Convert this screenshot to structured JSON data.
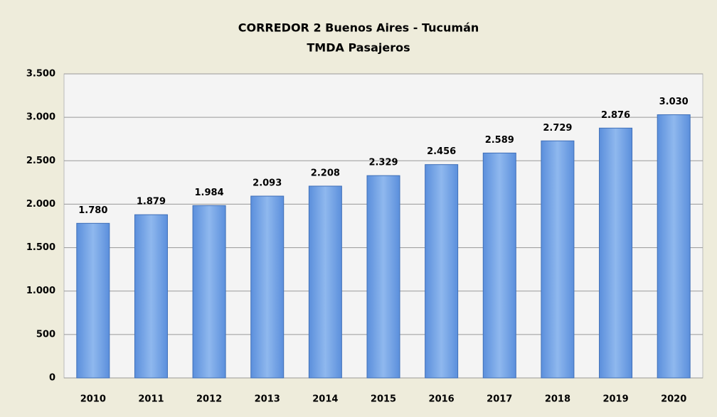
{
  "chart_data": {
    "type": "bar",
    "title": "CORREDOR 2 Buenos Aires - Tucumán",
    "subtitle": "TMDA Pasajeros",
    "categories": [
      "2010",
      "2011",
      "2012",
      "2013",
      "2014",
      "2015",
      "2016",
      "2017",
      "2018",
      "2019",
      "2020"
    ],
    "values": [
      1780,
      1879,
      1984,
      2093,
      2208,
      2329,
      2456,
      2589,
      2729,
      2876,
      3030
    ],
    "value_labels": [
      "1.780",
      "1.879",
      "1.984",
      "2.093",
      "2.208",
      "2.329",
      "2.456",
      "2.589",
      "2.729",
      "2.876",
      "3.030"
    ],
    "color": "#5b8fdc",
    "ylim": [
      0,
      3500
    ],
    "yticks": [
      0,
      500,
      {
        "value": 1000,
        "label": "1.000"
      },
      {
        "value": 1500,
        "label": "1.500"
      },
      {
        "value": 2000,
        "label": "2.000"
      },
      {
        "value": 2500,
        "label": "2.500"
      },
      {
        "value": 3000,
        "label": "3.000"
      },
      {
        "value": 3500,
        "label": "3.500"
      }
    ],
    "grid": true
  }
}
